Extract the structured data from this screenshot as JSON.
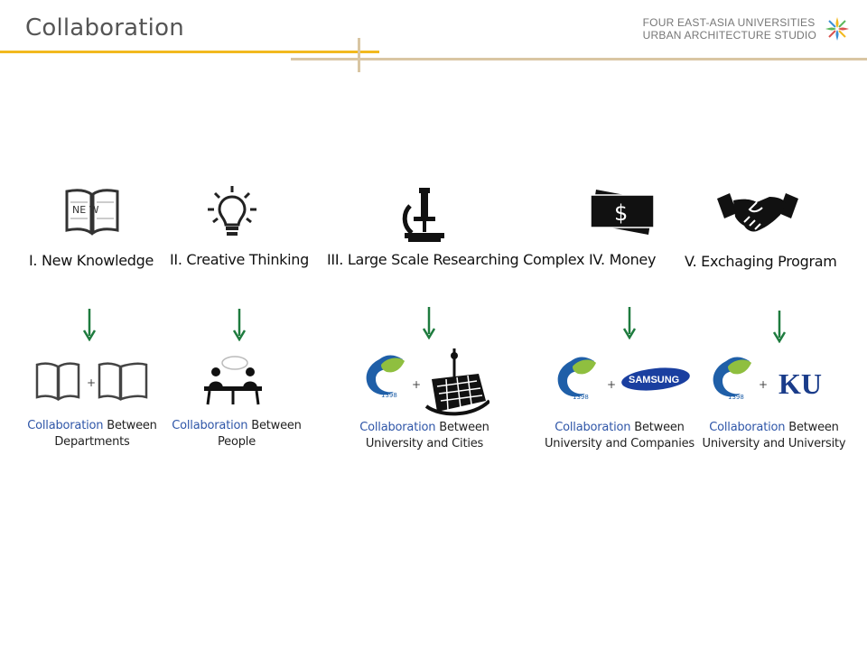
{
  "slide": {
    "title": "Collaboration",
    "org_line1": "FOUR EAST-ASIA  UNIVERSITIES",
    "org_line2": "URBAN ARCHITECTURE STUDIO"
  },
  "colors": {
    "gold_rule": "#f2b91e",
    "beige_rule": "#d9c6a3",
    "arrow_green": "#1e7b3e",
    "collab_blue": "#2f56a8"
  },
  "items": [
    {
      "label": "I. New Knowledge",
      "icon": "book-new-icon",
      "book_text": "NE W",
      "collab_highlight": "Collaboration",
      "collab_rest": " Between",
      "collab_line2": "Departments",
      "pair_icon": "book-plus-book-icon"
    },
    {
      "label": "II. Creative Thinking",
      "icon": "lightbulb-icon",
      "collab_highlight": "Collaboration",
      "collab_rest": " Between",
      "collab_line2": "People",
      "pair_icon": "people-meeting-icon"
    },
    {
      "label": "III. Large Scale Researching Complex",
      "icon": "microscope-icon",
      "collab_highlight": "Collaboration",
      "collab_rest": " Between",
      "collab_line2": "University and Cities",
      "pair_icon": "university-plus-city-icon",
      "univ_year": "1398"
    },
    {
      "label": "IV. Money",
      "icon": "banknote-icon",
      "money_symbol": "$",
      "collab_highlight": "Collaboration",
      "collab_rest": " Between",
      "collab_line2": "University and Companies",
      "pair_icon": "university-plus-samsung-icon",
      "univ_year": "1398",
      "company_text": "SAMSUNG"
    },
    {
      "label": "V.  Exchaging Program",
      "icon": "handshake-icon",
      "collab_highlight": "Collaboration",
      "collab_rest": " Between",
      "collab_line2": "University and University",
      "pair_icon": "university-plus-ku-icon",
      "univ_year": "1398",
      "partner_text": "KU"
    }
  ],
  "plus": "+"
}
